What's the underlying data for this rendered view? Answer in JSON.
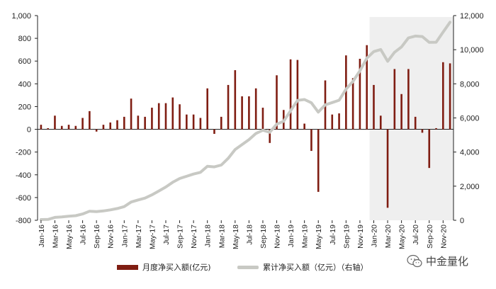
{
  "chart_data": {
    "type": "bar+line",
    "x": [
      "Jan-16",
      "Feb-16",
      "Mar-16",
      "Apr-16",
      "May-16",
      "Jun-16",
      "Jul-16",
      "Aug-16",
      "Sep-16",
      "Oct-16",
      "Nov-16",
      "Dec-16",
      "Jan-17",
      "Feb-17",
      "Mar-17",
      "Apr-17",
      "May-17",
      "Jun-17",
      "Jul-17",
      "Aug-17",
      "Sep-17",
      "Oct-17",
      "Nov-17",
      "Dec-17",
      "Jan-18",
      "Feb-18",
      "Mar-18",
      "Apr-18",
      "May-18",
      "Jun-18",
      "Jul-18",
      "Aug-18",
      "Sep-18",
      "Oct-18",
      "Nov-18",
      "Dec-18",
      "Jan-19",
      "Feb-19",
      "Mar-19",
      "Apr-19",
      "May-19",
      "Jun-19",
      "Jul-19",
      "Aug-19",
      "Sep-19",
      "Oct-19",
      "Nov-19",
      "Dec-19",
      "Jan-20",
      "Feb-20",
      "Mar-20",
      "Apr-20",
      "May-20",
      "Jun-20",
      "Jul-20",
      "Aug-20",
      "Sep-20",
      "Oct-20",
      "Nov-20",
      "Dec-20"
    ],
    "x_tick_labels": [
      "Jan-16",
      "Mar-16",
      "May-16",
      "Jul-16",
      "Sep-16",
      "Nov-16",
      "Jan-17",
      "Mar-17",
      "May-17",
      "Jul-17",
      "Sep-17",
      "Nov-17",
      "Jan-18",
      "Mar-18",
      "May-18",
      "Jul-18",
      "Sep-18",
      "Nov-18",
      "Jan-19",
      "Mar-19",
      "May-19",
      "Jul-19",
      "Sep-19",
      "Nov-19",
      "Jan-20",
      "Mar-20",
      "May-20",
      "Jul-20",
      "Sep-20",
      "Nov-20"
    ],
    "series": [
      {
        "name": "月度净买入额(亿元)",
        "type": "bar",
        "axis": "left",
        "color": "#7f1d12",
        "values": [
          40,
          10,
          120,
          30,
          40,
          30,
          100,
          160,
          -20,
          40,
          60,
          80,
          110,
          270,
          120,
          110,
          190,
          230,
          230,
          280,
          220,
          130,
          130,
          100,
          360,
          -40,
          110,
          390,
          520,
          290,
          290,
          360,
          190,
          -120,
          475,
          170,
          615,
          610,
          50,
          -190,
          -550,
          430,
          130,
          140,
          650,
          450,
          620,
          740,
          390,
          120,
          -690,
          530,
          310,
          530,
          110,
          -30,
          -340,
          10,
          590,
          580
        ]
      },
      {
        "name": "累计净买入额(亿元)(右轴)",
        "type": "line",
        "axis": "right",
        "color": "#c8c9c4",
        "values": [
          40,
          50,
          170,
          200,
          240,
          270,
          370,
          530,
          510,
          550,
          610,
          690,
          800,
          1070,
          1190,
          1300,
          1490,
          1720,
          1950,
          2230,
          2450,
          2580,
          2710,
          2810,
          3170,
          3130,
          3240,
          3630,
          4150,
          4440,
          4730,
          5090,
          5280,
          5160,
          5635,
          5805,
          6420,
          7030,
          7080,
          6890,
          6340,
          6770,
          6900,
          7040,
          7690,
          8140,
          8760,
          9500,
          9890,
          10010,
          9320,
          9850,
          10160,
          10690,
          10800,
          10770,
          10430,
          10440,
          11030,
          11610
        ]
      }
    ],
    "yleft": {
      "ylim": [
        -800,
        1000
      ],
      "ticks": [
        "-800",
        "-600",
        "-400",
        "-200",
        "0",
        "200",
        "400",
        "600",
        "800",
        "1,000"
      ]
    },
    "yright": {
      "ylim": [
        0,
        12000
      ],
      "ticks": [
        "0",
        "2,000",
        "4,000",
        "6,000",
        "8,000",
        "10,000",
        "12,000"
      ]
    },
    "highlight_region": {
      "from": "Jan-20",
      "to": "Dec-20",
      "color": "#efefef"
    },
    "legend_position": "bottom"
  },
  "legend": {
    "bar_label": "月度净买入额(亿元)",
    "line_label": "累计净买入额（亿元）（右轴）"
  },
  "watermark": {
    "text": "中金量化",
    "icon": "wechat-icon"
  }
}
